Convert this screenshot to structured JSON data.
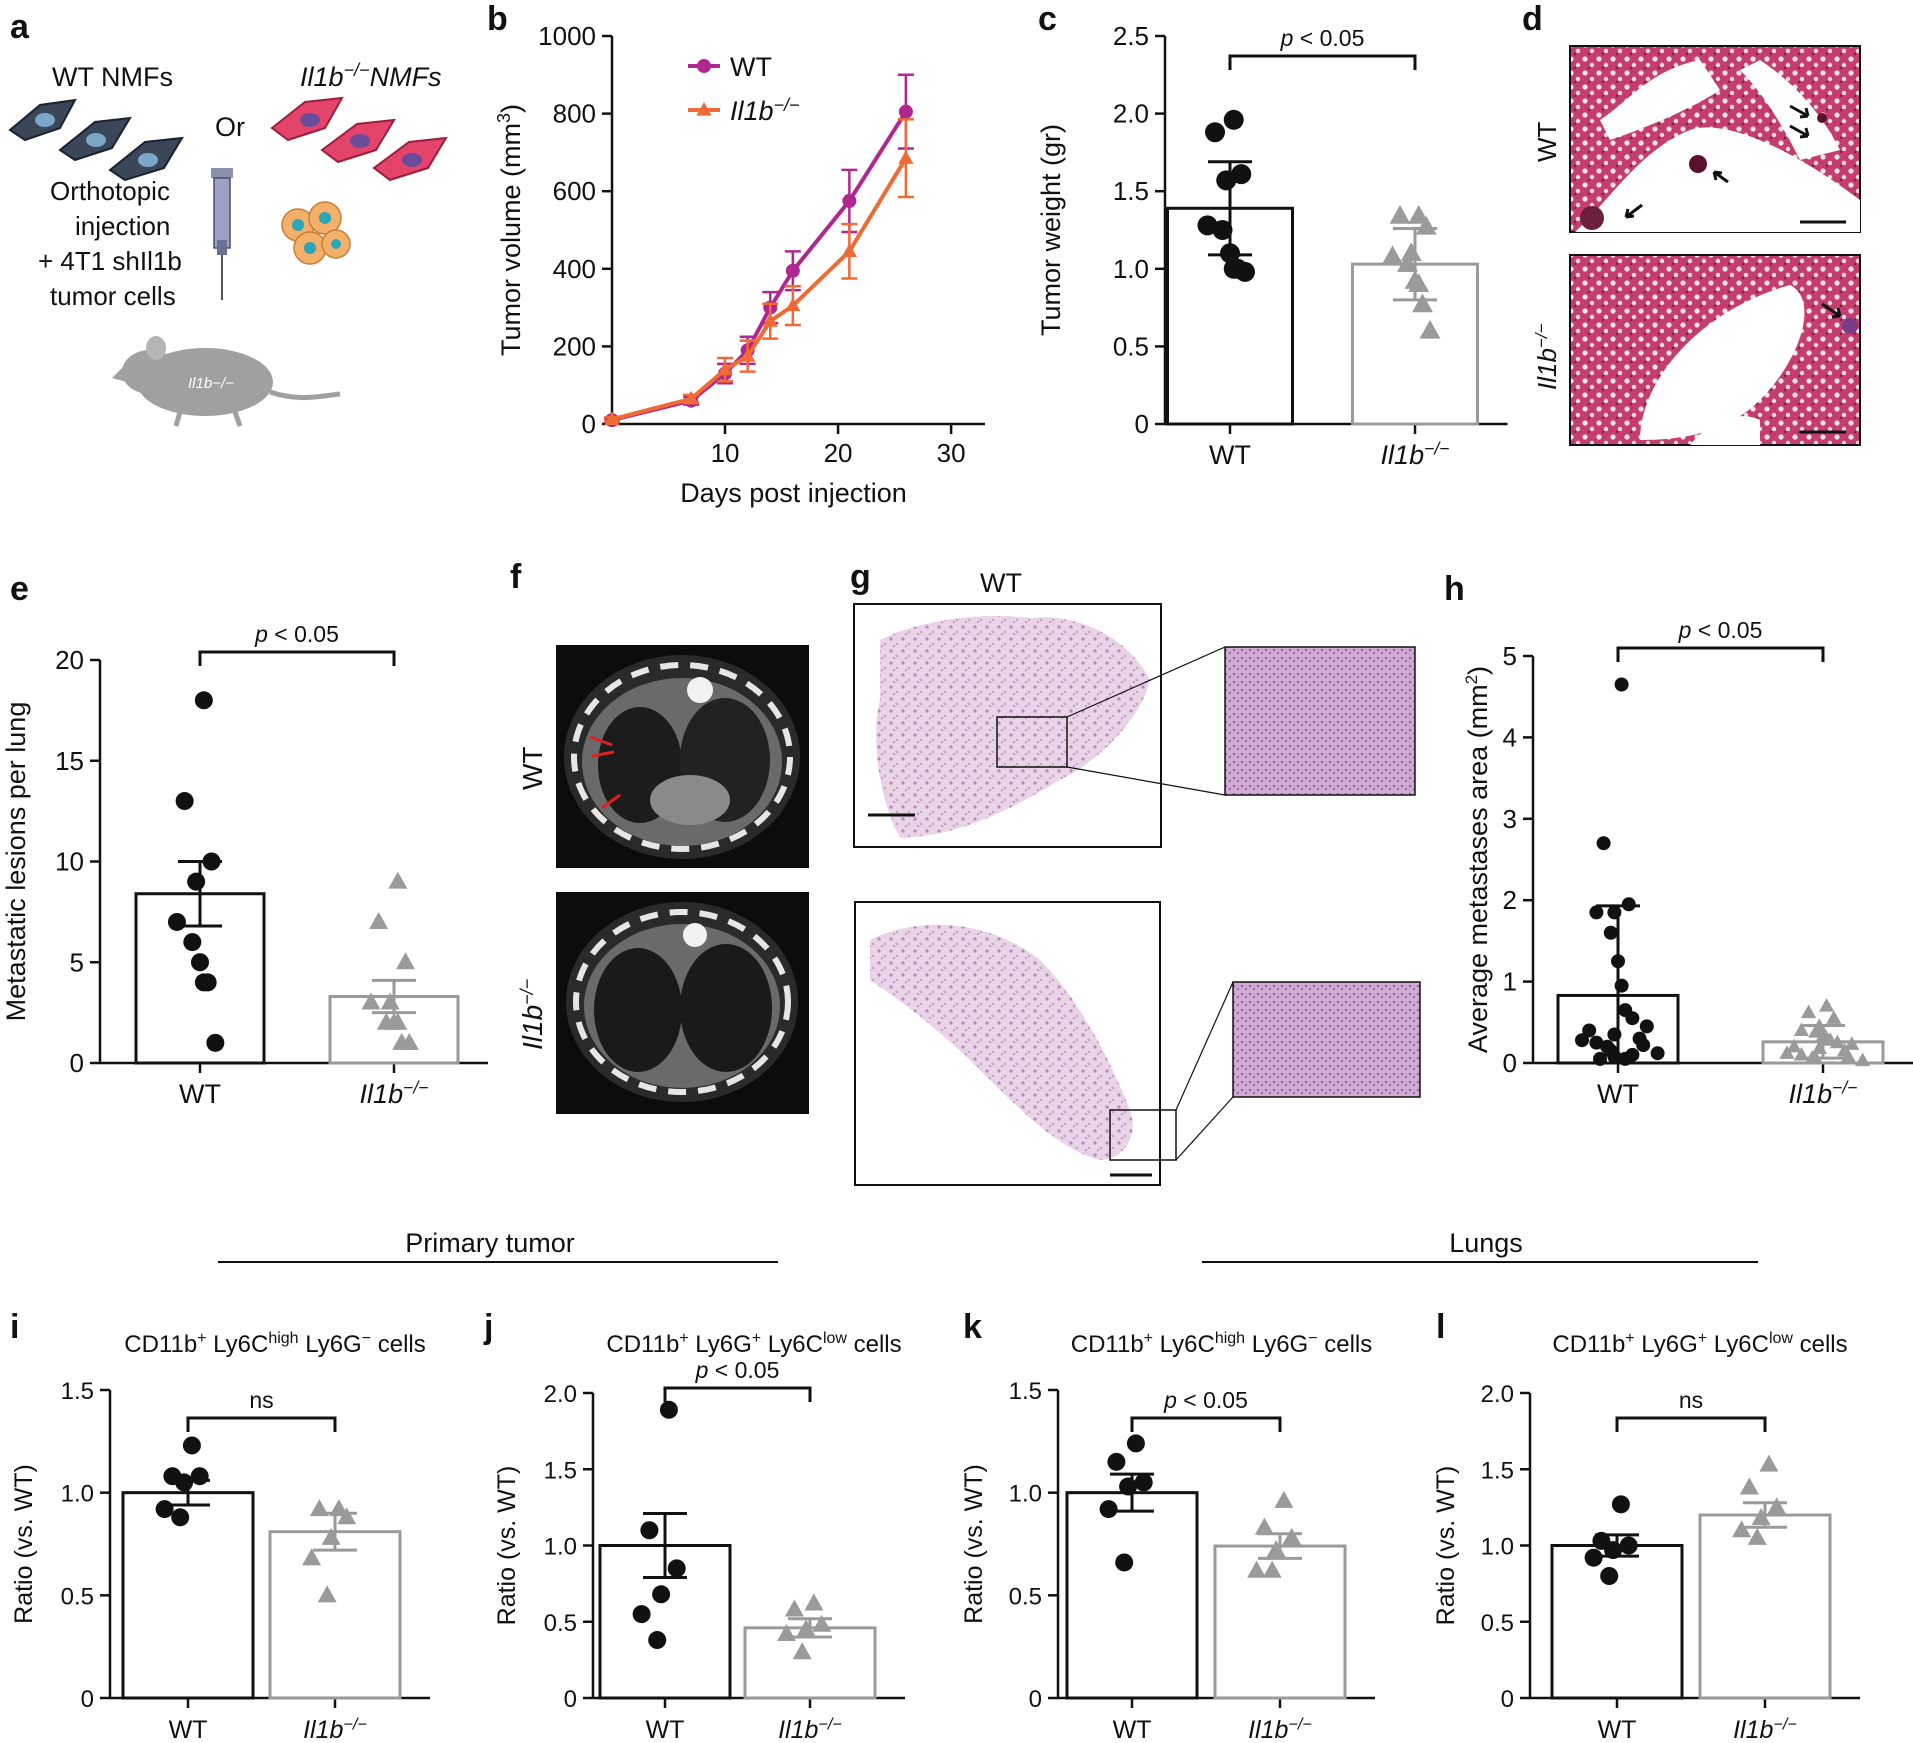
{
  "panels": {
    "a": "a",
    "b": "b",
    "c": "c",
    "d": "d",
    "e": "e",
    "f": "f",
    "g": "g",
    "h": "h",
    "i": "i",
    "j": "j",
    "k": "k",
    "l": "l"
  },
  "schematic": {
    "wt_nmfs": "WT NMFs",
    "ko_nmfs_gene": "Il1b",
    "ko_nmfs_sup": "−/−",
    "ko_nmfs_suffix": "NMFs",
    "or": "Or",
    "line1": "Orthotopic",
    "line2": "injection",
    "line3": "+ 4T1 shIl1b",
    "line4": "tumor cells",
    "mouse_label": "Il1b−/−"
  },
  "genotypes": {
    "wt": "WT",
    "ko": "Il1b",
    "ko_sup": "−/−"
  },
  "sections": {
    "primary": "Primary tumor",
    "lungs": "Lungs"
  },
  "colors": {
    "wt_line": "#b0288f",
    "ko_line": "#ef6a35",
    "wt_dot": "#111111",
    "ko_dot": "#9a9a9a",
    "he_pink": "#c8528a",
    "ct_bg": "#0c0c0c"
  },
  "chart_data": [
    {
      "panel": "b",
      "type": "line",
      "xlabel": "Days post injection",
      "ylabel": "Tumor volume (mm³)",
      "ylabel_base": "Tumor volume (mm",
      "ylabel_sup": "3",
      "ylabel_end": ")",
      "xlim": [
        0,
        33
      ],
      "ylim": [
        0,
        1000
      ],
      "xticks": [
        10,
        20,
        30
      ],
      "yticks": [
        0,
        200,
        400,
        600,
        800,
        1000
      ],
      "legend": [
        "WT",
        "Il1b−/−"
      ],
      "series": [
        {
          "name": "WT",
          "x": [
            0,
            7,
            10,
            12,
            14,
            16,
            21,
            26
          ],
          "y": [
            10,
            60,
            130,
            190,
            300,
            395,
            575,
            805
          ],
          "err": [
            5,
            10,
            25,
            35,
            40,
            50,
            80,
            95
          ]
        },
        {
          "name": "Il1b−/−",
          "x": [
            0,
            7,
            10,
            12,
            14,
            16,
            21,
            26
          ],
          "y": [
            12,
            65,
            140,
            175,
            265,
            305,
            445,
            685
          ],
          "err": [
            5,
            10,
            30,
            40,
            45,
            50,
            70,
            100
          ]
        }
      ]
    },
    {
      "panel": "c",
      "type": "bar",
      "ylabel": "Tumor weight (gr)",
      "ylim": [
        0,
        2.5
      ],
      "yticks": [
        "0",
        "0.5",
        "1.0",
        "1.5",
        "2.0",
        "2.5"
      ],
      "sig": "p < 0.05",
      "categories": [
        "WT",
        "Il1b−/−"
      ],
      "values": [
        1.39,
        1.03
      ],
      "err": [
        0.3,
        0.23
      ],
      "points": [
        [
          1.96,
          1.88,
          1.61,
          1.57,
          1.28,
          1.25,
          1.1,
          1.0,
          1.0,
          0.98
        ],
        [
          1.34,
          1.34,
          1.27,
          1.1,
          1.08,
          1.03,
          0.92,
          0.9,
          0.77,
          0.6
        ]
      ]
    },
    {
      "panel": "e",
      "type": "bar",
      "ylabel": "Metastatic lesions per lung",
      "ylim": [
        0,
        20
      ],
      "yticks": [
        "0",
        "5",
        "10",
        "15",
        "20"
      ],
      "sig": "p < 0.05",
      "categories": [
        "WT",
        "Il1b−/−"
      ],
      "values": [
        8.4,
        3.3
      ],
      "err": [
        1.6,
        0.8
      ],
      "points": [
        [
          18,
          13,
          10,
          9,
          7,
          6,
          5,
          4,
          4,
          1
        ],
        [
          9,
          7,
          5,
          3,
          3,
          2,
          2,
          2,
          1,
          1
        ]
      ]
    },
    {
      "panel": "h",
      "type": "bar",
      "ylabel": "Average metastases area (mm²)",
      "ylabel_base": "Average metastases area (mm",
      "ylabel_sup": "2",
      "ylabel_end": ")",
      "ylim": [
        0,
        5
      ],
      "yticks": [
        "0",
        "1",
        "2",
        "3",
        "4",
        "5"
      ],
      "sig": "p < 0.05",
      "categories": [
        "WT",
        "Il1b−/−"
      ],
      "values": [
        0.83,
        0.26
      ],
      "err": [
        1.1,
        0.2
      ],
      "points": [
        [
          4.65,
          2.7,
          1.95,
          1.85,
          1.85,
          1.6,
          1.25,
          0.95,
          0.65,
          0.55,
          0.45,
          0.4,
          0.35,
          0.3,
          0.28,
          0.25,
          0.22,
          0.2,
          0.15,
          0.12,
          0.1,
          0.08,
          0.05,
          0.05
        ],
        [
          0.7,
          0.62,
          0.55,
          0.45,
          0.4,
          0.38,
          0.33,
          0.3,
          0.28,
          0.25,
          0.23,
          0.2,
          0.18,
          0.15,
          0.12,
          0.1,
          0.08,
          0.06,
          0.05,
          0.03
        ]
      ]
    },
    {
      "panel": "i",
      "type": "bar",
      "title": "CD11b+ Ly6Chigh Ly6G− cells",
      "title_parts": [
        [
          "CD11b",
          ""
        ],
        [
          "+",
          "sup"
        ],
        [
          " Ly6C",
          ""
        ],
        [
          "high",
          "sup"
        ],
        [
          " Ly6G",
          ""
        ],
        [
          "−",
          "sup"
        ],
        [
          " cells",
          ""
        ]
      ],
      "ylabel": "Ratio (vs. WT)",
      "ylim": [
        0,
        1.5
      ],
      "yticks": [
        "0",
        "0.5",
        "1.0",
        "1.5"
      ],
      "sig": "ns",
      "categories": [
        "WT",
        "Il1b−/−"
      ],
      "values": [
        1.0,
        0.81
      ],
      "err": [
        0.06,
        0.09
      ],
      "points": [
        [
          1.23,
          1.08,
          1.08,
          1.05,
          0.92,
          0.88
        ],
        [
          0.92,
          0.92,
          0.88,
          0.78,
          0.68,
          0.5
        ]
      ]
    },
    {
      "panel": "j",
      "type": "bar",
      "title": "CD11b+ Ly6G+ Ly6Clow cells",
      "title_parts": [
        [
          "CD11b",
          ""
        ],
        [
          "+",
          "sup"
        ],
        [
          " Ly6G",
          ""
        ],
        [
          "+",
          "sup"
        ],
        [
          " Ly6C",
          ""
        ],
        [
          "low",
          "sup"
        ],
        [
          " cells",
          ""
        ]
      ],
      "ylabel": "Ratio (vs. WT)",
      "ylim": [
        0,
        2.0
      ],
      "yticks": [
        "0",
        "0.5",
        "1.0",
        "1.5",
        "2.0"
      ],
      "sig": "p < 0.05",
      "categories": [
        "WT",
        "Il1b−/−"
      ],
      "values": [
        1.0,
        0.46
      ],
      "err": [
        0.21,
        0.06
      ],
      "points": [
        [
          1.89,
          1.1,
          0.85,
          0.68,
          0.55,
          0.38
        ],
        [
          0.62,
          0.58,
          0.48,
          0.45,
          0.42,
          0.3
        ]
      ]
    },
    {
      "panel": "k",
      "type": "bar",
      "title": "CD11b+ Ly6Chigh Ly6G− cells",
      "title_parts": [
        [
          "CD11b",
          ""
        ],
        [
          "+",
          "sup"
        ],
        [
          " Ly6C",
          ""
        ],
        [
          "high",
          "sup"
        ],
        [
          " Ly6G",
          ""
        ],
        [
          "−",
          "sup"
        ],
        [
          " cells",
          ""
        ]
      ],
      "ylabel": "Ratio (vs. WT)",
      "ylim": [
        0,
        1.5
      ],
      "yticks": [
        "0",
        "0.5",
        "1.0",
        "1.5"
      ],
      "sig": "p < 0.05",
      "categories": [
        "WT",
        "Il1b−/−"
      ],
      "values": [
        1.0,
        0.74
      ],
      "err": [
        0.09,
        0.06
      ],
      "points": [
        [
          1.24,
          1.15,
          1.05,
          1.03,
          0.92,
          0.66
        ],
        [
          0.96,
          0.83,
          0.78,
          0.72,
          0.62,
          0.62
        ]
      ]
    },
    {
      "panel": "l",
      "type": "bar",
      "title": "CD11b+ Ly6G+ Ly6Clow cells",
      "title_parts": [
        [
          "CD11b",
          ""
        ],
        [
          "+",
          "sup"
        ],
        [
          " Ly6G",
          ""
        ],
        [
          "+",
          "sup"
        ],
        [
          " Ly6C",
          ""
        ],
        [
          "low",
          "sup"
        ],
        [
          " cells",
          ""
        ]
      ],
      "ylabel": "Ratio (vs. WT)",
      "ylim": [
        0,
        2.0
      ],
      "yticks": [
        "0",
        "0.5",
        "1.0",
        "1.5",
        "2.0"
      ],
      "sig": "ns",
      "categories": [
        "WT",
        "Il1b−/−"
      ],
      "values": [
        1.0,
        1.2
      ],
      "err": [
        0.07,
        0.08
      ],
      "points": [
        [
          1.27,
          1.03,
          1.0,
          0.97,
          0.92,
          0.8
        ],
        [
          1.53,
          1.38,
          1.25,
          1.18,
          1.1,
          1.05
        ]
      ]
    }
  ]
}
